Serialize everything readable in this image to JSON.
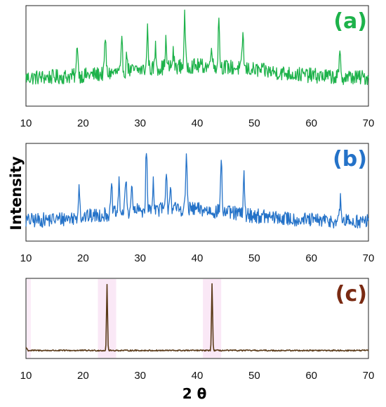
{
  "figure": {
    "ylabel": "Intensity",
    "xlabel": "2 θ"
  },
  "chart_data": [
    {
      "type": "line",
      "panel_label": "(a)",
      "color": "#1db24a",
      "xlim": [
        10,
        70
      ],
      "x_ticks": [
        10,
        20,
        30,
        40,
        50,
        60,
        70
      ],
      "baseline": 0.28,
      "noise": 0.075,
      "hump": {
        "center": 40,
        "width": 16,
        "height": 0.12
      },
      "peaks": [
        {
          "x": 19.0,
          "y": 0.62
        },
        {
          "x": 23.9,
          "y": 0.65
        },
        {
          "x": 26.8,
          "y": 0.56
        },
        {
          "x": 27.7,
          "y": 0.46
        },
        {
          "x": 31.3,
          "y": 0.68
        },
        {
          "x": 32.7,
          "y": 0.49
        },
        {
          "x": 34.5,
          "y": 0.54
        },
        {
          "x": 35.8,
          "y": 0.42
        },
        {
          "x": 37.8,
          "y": 0.78
        },
        {
          "x": 42.5,
          "y": 0.53
        },
        {
          "x": 43.8,
          "y": 0.77
        },
        {
          "x": 48.0,
          "y": 0.64
        },
        {
          "x": 65.0,
          "y": 0.5
        }
      ]
    },
    {
      "type": "line",
      "panel_label": "(b)",
      "color": "#2472c8",
      "xlim": [
        10,
        70
      ],
      "x_ticks": [
        10,
        20,
        30,
        40,
        50,
        60,
        70
      ],
      "baseline": 0.2,
      "noise": 0.075,
      "hump": {
        "center": 36,
        "width": 16,
        "height": 0.13
      },
      "peaks": [
        {
          "x": 19.3,
          "y": 0.55
        },
        {
          "x": 25.0,
          "y": 0.48
        },
        {
          "x": 26.3,
          "y": 0.5
        },
        {
          "x": 27.5,
          "y": 0.56
        },
        {
          "x": 28.5,
          "y": 0.47
        },
        {
          "x": 31.1,
          "y": 0.85
        },
        {
          "x": 32.3,
          "y": 0.5
        },
        {
          "x": 34.6,
          "y": 0.53
        },
        {
          "x": 35.3,
          "y": 0.47
        },
        {
          "x": 38.1,
          "y": 0.77
        },
        {
          "x": 44.2,
          "y": 0.76
        },
        {
          "x": 48.2,
          "y": 0.59
        },
        {
          "x": 65.1,
          "y": 0.42
        }
      ]
    },
    {
      "type": "line",
      "panel_label": "(c)",
      "color": "#5a3a18",
      "highlight": "#f6d6ef",
      "xlim": [
        10,
        70
      ],
      "x_ticks": [
        10,
        20,
        30,
        40,
        50,
        60,
        70
      ],
      "baseline": 0.1,
      "noise": 0.008,
      "hump": {
        "center": 40,
        "width": 20,
        "height": 0.0
      },
      "peaks": [
        {
          "x": 24.2,
          "y": 0.93
        },
        {
          "x": 42.6,
          "y": 0.93
        }
      ]
    }
  ]
}
